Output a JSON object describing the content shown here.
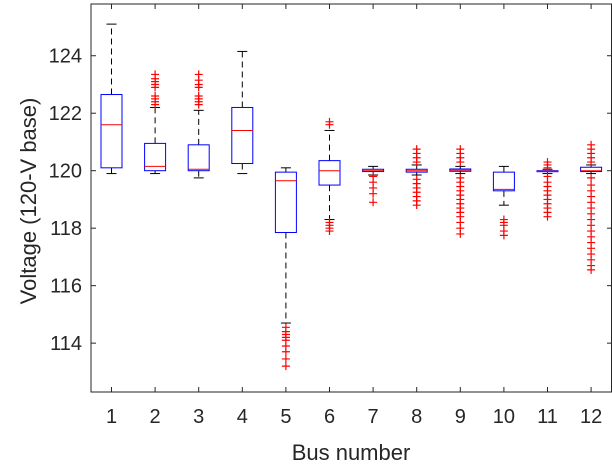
{
  "chart_data": {
    "type": "boxplot",
    "xlabel": "Bus number",
    "ylabel": "Voltage (120-V base)",
    "categories": [
      "1",
      "2",
      "3",
      "4",
      "5",
      "6",
      "7",
      "8",
      "9",
      "10",
      "11",
      "12"
    ],
    "ylim": [
      112.3,
      125.8
    ],
    "yticks": [
      114,
      116,
      118,
      120,
      122,
      124
    ],
    "grid": false,
    "colors": {
      "box": "#0000ff",
      "median": "#ff0000",
      "whisker": "#000000",
      "outlier": "#ff0000"
    },
    "boxes": [
      {
        "min": 119.9,
        "q1": 120.1,
        "median": 121.6,
        "q3": 122.65,
        "max": 125.1,
        "outliers": []
      },
      {
        "min": 119.9,
        "q1": 120.0,
        "median": 120.15,
        "q3": 120.95,
        "max": 122.2,
        "outliers": [
          122.3,
          122.4,
          122.5,
          122.6,
          122.9,
          123.0,
          123.1,
          123.2,
          123.35
        ]
      },
      {
        "min": 119.75,
        "q1": 120.0,
        "median": 120.05,
        "q3": 120.9,
        "max": 122.1,
        "outliers": [
          122.3,
          122.4,
          122.5,
          122.6,
          122.9,
          123.0,
          123.15,
          123.35
        ]
      },
      {
        "min": 119.9,
        "q1": 120.25,
        "median": 121.4,
        "q3": 122.2,
        "max": 124.15,
        "outliers": []
      },
      {
        "min": 114.7,
        "q1": 117.85,
        "median": 119.65,
        "q3": 119.95,
        "max": 120.1,
        "outliers": [
          114.55,
          114.4,
          114.3,
          114.2,
          114.1,
          113.9,
          113.7,
          113.45,
          113.2
        ]
      },
      {
        "min": 118.3,
        "q1": 119.5,
        "median": 120.0,
        "q3": 120.35,
        "max": 121.4,
        "outliers": [
          121.6,
          121.7,
          118.2,
          118.1,
          118.0,
          117.9
        ]
      },
      {
        "min": 119.85,
        "q1": 119.97,
        "median": 120.0,
        "q3": 120.05,
        "max": 120.15,
        "outliers": [
          119.8,
          119.6,
          119.4,
          119.2,
          118.9
        ]
      },
      {
        "min": 119.85,
        "q1": 119.95,
        "median": 120.0,
        "q3": 120.05,
        "max": 120.2,
        "outliers": [
          120.3,
          120.45,
          120.6,
          120.75,
          119.7,
          119.55,
          119.4,
          119.25,
          119.1,
          118.95,
          118.8
        ]
      },
      {
        "min": 119.9,
        "q1": 119.98,
        "median": 120.02,
        "q3": 120.06,
        "max": 120.15,
        "outliers": [
          120.3,
          120.45,
          120.6,
          120.75,
          119.75,
          119.6,
          119.45,
          119.3,
          119.15,
          119.0,
          118.85,
          118.7,
          118.55,
          118.4,
          118.2,
          118.0,
          117.8
        ]
      },
      {
        "min": 118.8,
        "q1": 119.3,
        "median": 119.35,
        "q3": 119.95,
        "max": 120.15,
        "outliers": [
          118.3,
          118.2,
          118.1,
          117.9,
          117.75
        ]
      },
      {
        "min": 119.9,
        "q1": 119.97,
        "median": 119.98,
        "q3": 120.0,
        "max": 120.05,
        "outliers": [
          120.1,
          120.2,
          120.3,
          119.8,
          119.6,
          119.45,
          119.3,
          119.15,
          119.0,
          118.85,
          118.7,
          118.55,
          118.4
        ]
      },
      {
        "min": 119.9,
        "q1": 119.97,
        "median": 120.0,
        "q3": 120.12,
        "max": 120.2,
        "outliers": [
          120.3,
          120.45,
          120.6,
          120.75,
          120.9,
          119.75,
          119.5,
          119.3,
          119.1,
          118.9,
          118.7,
          118.5,
          118.3,
          118.1,
          117.9,
          117.7,
          117.5,
          117.3,
          117.1,
          116.9,
          116.7,
          116.55
        ]
      }
    ]
  }
}
